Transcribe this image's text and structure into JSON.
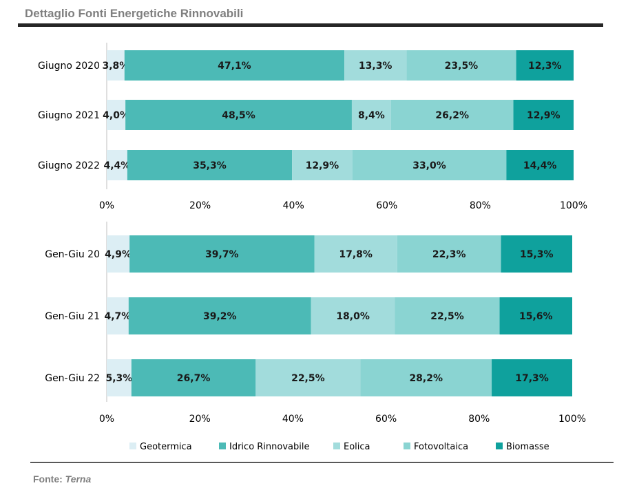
{
  "title": "Dettaglio Fonti Energetiche Rinnovabili",
  "source": {
    "prefix": "Fonte:",
    "name": "Terna"
  },
  "colors": {
    "Geotermica": "#dceef4",
    "Idrico Rinnovabile": "#4cbab6",
    "Eolica": "#a2dcdc",
    "Fotovoltaica": "#8ad4d2",
    "Biomasse": "#0fa19d"
  },
  "chart_data": [
    {
      "type": "bar",
      "orientation": "horizontal",
      "stacked": "percent",
      "categories": [
        "Giugno 2020",
        "Giugno 2021",
        "Giugno 2022"
      ],
      "xticks": [
        "0%",
        "20%",
        "40%",
        "60%",
        "80%",
        "100%"
      ],
      "xlim": [
        0,
        100
      ],
      "series": [
        {
          "name": "Geotermica",
          "values": [
            3.8,
            4.0,
            4.4
          ],
          "labels": [
            "3,8%",
            "4,0%",
            "4,4%"
          ]
        },
        {
          "name": "Idrico Rinnovabile",
          "values": [
            47.1,
            48.5,
            35.3
          ],
          "labels": [
            "47,1%",
            "48,5%",
            "35,3%"
          ]
        },
        {
          "name": "Eolica",
          "values": [
            13.3,
            8.4,
            12.9
          ],
          "labels": [
            "13,3%",
            "8,4%",
            "12,9%"
          ]
        },
        {
          "name": "Fotovoltaica",
          "values": [
            23.5,
            26.2,
            33.0
          ],
          "labels": [
            "23,5%",
            "26,2%",
            "33,0%"
          ]
        },
        {
          "name": "Biomasse",
          "values": [
            12.3,
            12.9,
            14.4
          ],
          "labels": [
            "12,3%",
            "12,9%",
            "14,4%"
          ]
        }
      ]
    },
    {
      "type": "bar",
      "orientation": "horizontal",
      "stacked": "percent",
      "categories": [
        "Gen-Giu 20",
        "Gen-Giu 21",
        "Gen-Giu 22"
      ],
      "xticks": [
        "0%",
        "20%",
        "40%",
        "60%",
        "80%",
        "100%"
      ],
      "xlim": [
        0,
        100
      ],
      "series": [
        {
          "name": "Geotermica",
          "values": [
            4.9,
            4.7,
            5.3
          ],
          "labels": [
            "4,9%",
            "4,7%",
            "5,3%"
          ]
        },
        {
          "name": "Idrico Rinnovabile",
          "values": [
            39.7,
            39.2,
            26.7
          ],
          "labels": [
            "39,7%",
            "39,2%",
            "26,7%"
          ]
        },
        {
          "name": "Eolica",
          "values": [
            17.8,
            18.0,
            22.5
          ],
          "labels": [
            "17,8%",
            "18,0%",
            "22,5%"
          ]
        },
        {
          "name": "Fotovoltaica",
          "values": [
            22.3,
            22.5,
            28.2
          ],
          "labels": [
            "22,3%",
            "22,5%",
            "28,2%"
          ]
        },
        {
          "name": "Biomasse",
          "values": [
            15.3,
            15.6,
            17.3
          ],
          "labels": [
            "15,3%",
            "15,6%",
            "17,3%"
          ]
        }
      ]
    }
  ],
  "legend": {
    "position": "bottom",
    "items": [
      "Geotermica",
      "Idrico Rinnovabile",
      "Eolica",
      "Fotovoltaica",
      "Biomasse"
    ]
  }
}
